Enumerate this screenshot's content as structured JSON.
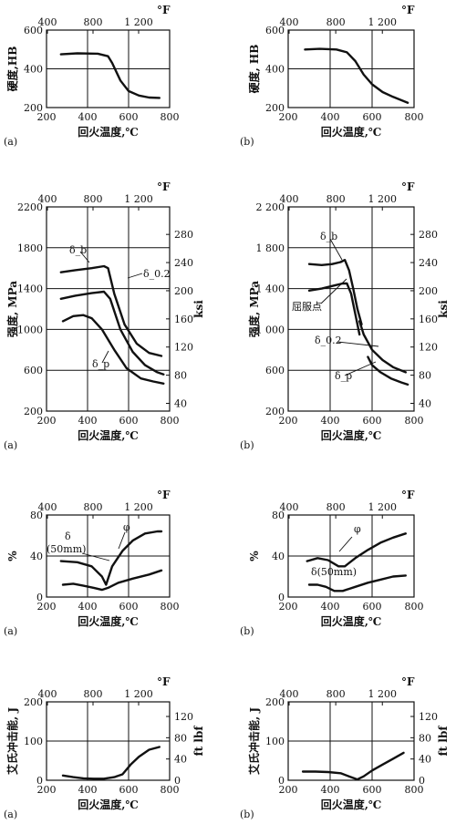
{
  "chart_data": [
    {
      "id": "hard-a",
      "panel_label": "(a)",
      "type": "line",
      "xlabel": "回火温度,℃",
      "ylabel": "硬度,HB",
      "x_ticks": [
        "200",
        "400",
        "600",
        "800"
      ],
      "y_ticks": [
        "200",
        "400",
        "600"
      ],
      "top_unit": "°F",
      "top_ticks": [
        "400",
        "800",
        "1 200"
      ],
      "xlim": [
        200,
        800
      ],
      "ylim": [
        200,
        600
      ],
      "grid": true,
      "series": [
        {
          "x": [
            270,
            350,
            450,
            500,
            520,
            560,
            600,
            650,
            700,
            750
          ],
          "y": [
            475,
            480,
            478,
            465,
            430,
            340,
            285,
            262,
            252,
            250
          ]
        }
      ]
    },
    {
      "id": "hard-b",
      "panel_label": "(b)",
      "type": "line",
      "xlabel": "回火温度,℃",
      "ylabel": "硬度, HB",
      "x_ticks": [
        "200",
        "400",
        "600",
        "800"
      ],
      "y_ticks": [
        "200",
        "400",
        "600"
      ],
      "top_unit": "°F",
      "top_ticks": [
        "400",
        "800",
        "1 200"
      ],
      "xlim": [
        200,
        800
      ],
      "ylim": [
        200,
        600
      ],
      "grid": true,
      "series": [
        {
          "x": [
            280,
            350,
            430,
            480,
            520,
            560,
            600,
            650,
            700,
            770
          ],
          "y": [
            500,
            503,
            500,
            485,
            440,
            370,
            320,
            280,
            255,
            225
          ]
        }
      ]
    },
    {
      "id": "str-a",
      "panel_label": "(a)",
      "type": "line",
      "xlabel": "回火温度,℃",
      "ylabel": "强度, MPa",
      "y2label": "ksi",
      "x_ticks": [
        "200",
        "400",
        "600",
        "800"
      ],
      "y_ticks": [
        "200",
        "600",
        "1000",
        "1400",
        "1800",
        "2200"
      ],
      "y2_ticks": [
        "40",
        "80",
        "120",
        "160",
        "200",
        "240",
        "280"
      ],
      "y2_ratio": 6.895,
      "top_unit": "°F",
      "top_ticks": [
        "400",
        "800",
        "1 200"
      ],
      "xlim": [
        200,
        800
      ],
      "ylim": [
        200,
        2200
      ],
      "grid": true,
      "series": [
        {
          "name": "δ_b",
          "x": [
            270,
            340,
            420,
            480,
            500,
            530,
            580,
            640,
            700,
            760
          ],
          "y": [
            1560,
            1580,
            1600,
            1620,
            1600,
            1350,
            1050,
            860,
            770,
            740
          ]
        },
        {
          "name": "δ_0.2",
          "x": [
            270,
            340,
            420,
            480,
            510,
            560,
            620,
            680,
            740,
            770
          ],
          "y": [
            1300,
            1330,
            1355,
            1370,
            1300,
            1000,
            780,
            650,
            580,
            560
          ]
        },
        {
          "name": "δ_p",
          "x": [
            280,
            330,
            380,
            420,
            470,
            530,
            590,
            660,
            720,
            770
          ],
          "y": [
            1080,
            1130,
            1140,
            1110,
            1000,
            800,
            620,
            520,
            490,
            470
          ]
        }
      ],
      "annotations": [
        "δ_b",
        "δ_0.2",
        "δ_p"
      ]
    },
    {
      "id": "str-b",
      "panel_label": "(b)",
      "type": "line",
      "xlabel": "回火温度,℃",
      "ylabel": "强度, MPa",
      "y2label": "ksi",
      "x_ticks": [
        "200",
        "400",
        "600",
        "800"
      ],
      "y_ticks": [
        "200",
        "600",
        "1 000",
        "1 400",
        "1 800",
        "2 200"
      ],
      "y2_ticks": [
        "40",
        "80",
        "120",
        "160",
        "200",
        "240",
        "280"
      ],
      "y2_ratio": 6.895,
      "top_unit": "°F",
      "top_ticks": [
        "400",
        "800",
        "1 200"
      ],
      "xlim": [
        200,
        800
      ],
      "ylim": [
        200,
        2200
      ],
      "grid": true,
      "series": [
        {
          "name": "δ_b",
          "x": [
            300,
            360,
            410,
            450,
            470,
            490,
            510,
            530,
            550
          ],
          "y": [
            1640,
            1630,
            1640,
            1660,
            1680,
            1580,
            1400,
            1200,
            1050
          ]
        },
        {
          "name": "屈服点",
          "x": [
            300,
            360,
            420,
            460,
            480,
            500,
            520,
            540
          ],
          "y": [
            1380,
            1400,
            1430,
            1450,
            1450,
            1350,
            1150,
            950
          ]
        },
        {
          "name": "δ_0.2",
          "x": [
            540,
            560,
            600,
            650,
            700,
            760
          ],
          "y": [
            1080,
            950,
            800,
            700,
            630,
            580
          ]
        },
        {
          "name": "δ_p",
          "x": [
            580,
            600,
            640,
            690,
            740,
            770
          ],
          "y": [
            730,
            650,
            580,
            520,
            480,
            460
          ]
        }
      ],
      "annotations": [
        "δ_b",
        "屈服点",
        "δ_0.2",
        "δ_p"
      ]
    },
    {
      "id": "duct-a",
      "panel_label": "(a)",
      "type": "line",
      "xlabel": "回火温度,℃",
      "ylabel": "%",
      "x_ticks": [
        "200",
        "400",
        "600",
        "800"
      ],
      "y_ticks": [
        "0",
        "40",
        "80"
      ],
      "top_unit": "°F",
      "top_ticks": [
        "400",
        "800",
        "1 200"
      ],
      "xlim": [
        200,
        800
      ],
      "ylim": [
        0,
        80
      ],
      "grid": true,
      "series": [
        {
          "name": "φ",
          "x": [
            270,
            350,
            420,
            470,
            490,
            520,
            570,
            620,
            680,
            740,
            760
          ],
          "y": [
            35,
            34,
            30,
            20,
            12,
            30,
            45,
            55,
            62,
            64,
            64
          ]
        },
        {
          "name": "δ(50mm)",
          "x": [
            280,
            330,
            380,
            430,
            470,
            500,
            550,
            620,
            700,
            760
          ],
          "y": [
            12,
            13,
            11,
            9,
            7,
            9,
            14,
            18,
            22,
            26
          ]
        }
      ],
      "annotations": [
        "δ",
        "(50mm)",
        "φ"
      ]
    },
    {
      "id": "duct-b",
      "panel_label": "(b)",
      "type": "line",
      "xlabel": "回火温度,℃",
      "ylabel": "%",
      "x_ticks": [
        "200",
        "400",
        "600",
        "800"
      ],
      "y_ticks": [
        "0",
        "40",
        "80"
      ],
      "top_unit": "°F",
      "top_ticks": [
        "400",
        "800",
        "1 200"
      ],
      "xlim": [
        200,
        800
      ],
      "ylim": [
        0,
        80
      ],
      "grid": true,
      "series": [
        {
          "name": "φ",
          "x": [
            290,
            340,
            390,
            440,
            470,
            520,
            580,
            640,
            700,
            760
          ],
          "y": [
            35,
            38,
            36,
            30,
            30,
            38,
            46,
            53,
            58,
            62
          ]
        },
        {
          "name": "δ(50mm)",
          "x": [
            300,
            340,
            380,
            420,
            460,
            520,
            580,
            640,
            700,
            760
          ],
          "y": [
            12,
            12,
            10,
            6,
            6,
            10,
            14,
            17,
            20,
            21
          ]
        }
      ],
      "annotations": [
        "φ",
        "δ(50mm)"
      ]
    },
    {
      "id": "imp-a",
      "panel_label": "(a)",
      "type": "line",
      "xlabel": "回火温度,℃",
      "ylabel": "艾氏冲击能, J",
      "y2label": "ft lbf",
      "x_ticks": [
        "200",
        "400",
        "600",
        "800"
      ],
      "y_ticks": [
        "0",
        "100",
        "200"
      ],
      "y2_ticks": [
        "0",
        "40",
        "80",
        "120"
      ],
      "y2_ratio": 1.356,
      "top_unit": "°F",
      "top_ticks": [
        "400",
        "800",
        "1 200"
      ],
      "xlim": [
        200,
        800
      ],
      "ylim": [
        0,
        200
      ],
      "grid": true,
      "series": [
        {
          "x": [
            280,
            330,
            380,
            430,
            480,
            530,
            570,
            610,
            650,
            700,
            750
          ],
          "y": [
            12,
            8,
            5,
            4,
            4,
            8,
            15,
            40,
            60,
            78,
            85
          ]
        }
      ]
    },
    {
      "id": "imp-b",
      "panel_label": "(b)",
      "type": "line",
      "xlabel": "回火温度,℃",
      "ylabel": "艾氏冲击能, J",
      "y2label": "ft lbf",
      "x_ticks": [
        "200",
        "400",
        "600",
        "800"
      ],
      "y_ticks": [
        "0",
        "100",
        "200"
      ],
      "y2_ticks": [
        "0",
        "40",
        "80",
        "120"
      ],
      "y2_ratio": 1.356,
      "top_unit": "°F",
      "top_ticks": [
        "400",
        "800",
        "1 200"
      ],
      "xlim": [
        200,
        800
      ],
      "ylim": [
        0,
        200
      ],
      "grid": true,
      "series": [
        {
          "x": [
            270,
            330,
            390,
            450,
            500,
            530,
            560,
            600,
            650,
            700,
            750
          ],
          "y": [
            22,
            22,
            21,
            18,
            8,
            2,
            10,
            25,
            40,
            55,
            70
          ]
        }
      ]
    }
  ]
}
